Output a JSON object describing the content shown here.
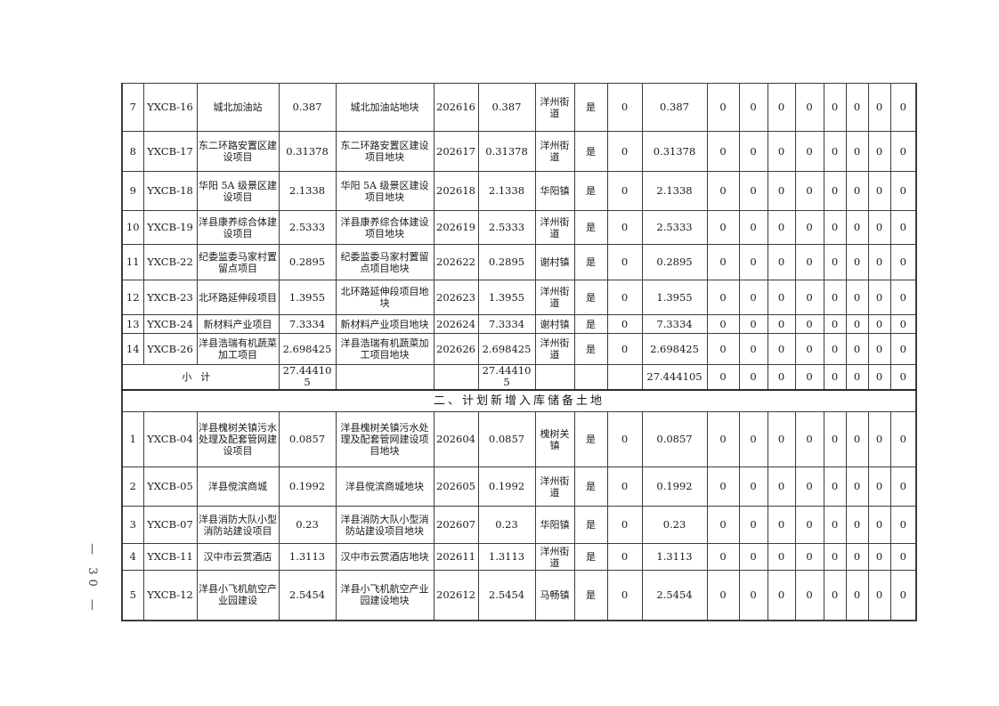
{
  "page": {
    "number_label": "— 30 —"
  },
  "table": {
    "section1_rows": [
      {
        "seq": "7",
        "code": "YXCB-16",
        "project": "城北加油站",
        "area1": "0.387",
        "parcel": "城北加油站地块",
        "parcel_code": "202616",
        "area2": "0.387",
        "town": "洋州街道",
        "flag": "是",
        "zero": "0",
        "area3": "0.387",
        "zeros": [
          "0",
          "0",
          "0",
          "0",
          "0",
          "0",
          "0",
          "0"
        ]
      },
      {
        "seq": "8",
        "code": "YXCB-17",
        "project": "东二环路安置区建设项目",
        "area1": "0.31378",
        "parcel": "东二环路安置区建设项目地块",
        "parcel_code": "202617",
        "area2": "0.31378",
        "town": "洋州街道",
        "flag": "是",
        "zero": "0",
        "area3": "0.31378",
        "zeros": [
          "0",
          "0",
          "0",
          "0",
          "0",
          "0",
          "0",
          "0"
        ]
      },
      {
        "seq": "9",
        "code": "YXCB-18",
        "project": "华阳 5A 级景区建设项目",
        "area1": "2.1338",
        "parcel": "华阳 5A 级景区建设项目地块",
        "parcel_code": "202618",
        "area2": "2.1338",
        "town": "华阳镇",
        "flag": "是",
        "zero": "0",
        "area3": "2.1338",
        "zeros": [
          "0",
          "0",
          "0",
          "0",
          "0",
          "0",
          "0",
          "0"
        ]
      },
      {
        "seq": "10",
        "code": "YXCB-19",
        "project": "洋县康养综合体建设项目",
        "area1": "2.5333",
        "parcel": "洋县康养综合体建设项目地块",
        "parcel_code": "202619",
        "area2": "2.5333",
        "town": "洋州街道",
        "flag": "是",
        "zero": "0",
        "area3": "2.5333",
        "zeros": [
          "0",
          "0",
          "0",
          "0",
          "0",
          "0",
          "0",
          "0"
        ]
      },
      {
        "seq": "11",
        "code": "YXCB-22",
        "project": "纪委监委马家村置留点项目",
        "area1": "0.2895",
        "parcel": "纪委监委马家村置留点项目地块",
        "parcel_code": "202622",
        "area2": "0.2895",
        "town": "谢村镇",
        "flag": "是",
        "zero": "0",
        "area3": "0.2895",
        "zeros": [
          "0",
          "0",
          "0",
          "0",
          "0",
          "0",
          "0",
          "0"
        ]
      },
      {
        "seq": "12",
        "code": "YXCB-23",
        "project": "北环路延伸段项目",
        "area1": "1.3955",
        "parcel": "北环路延伸段项目地块",
        "parcel_code": "202623",
        "area2": "1.3955",
        "town": "洋州街道",
        "flag": "是",
        "zero": "0",
        "area3": "1.3955",
        "zeros": [
          "0",
          "0",
          "0",
          "0",
          "0",
          "0",
          "0",
          "0"
        ]
      },
      {
        "seq": "13",
        "code": "YXCB-24",
        "project": "新材料产业项目",
        "area1": "7.3334",
        "parcel": "新材料产业项目地块",
        "parcel_code": "202624",
        "area2": "7.3334",
        "town": "谢村镇",
        "flag": "是",
        "zero": "0",
        "area3": "7.3334",
        "zeros": [
          "0",
          "0",
          "0",
          "0",
          "0",
          "0",
          "0",
          "0"
        ]
      },
      {
        "seq": "14",
        "code": "YXCB-26",
        "project": "洋县浩瑞有机蔬菜加工项目",
        "area1": "2.698425",
        "parcel": "洋县浩瑞有机蔬菜加工项目地块",
        "parcel_code": "202626",
        "area2": "2.698425",
        "town": "洋州街道",
        "flag": "是",
        "zero": "0",
        "area3": "2.698425",
        "zeros": [
          "0",
          "0",
          "0",
          "0",
          "0",
          "0",
          "0",
          "0"
        ]
      }
    ],
    "subtotal": {
      "label": "小计",
      "area1": "27.444105",
      "area2": "27.444105",
      "area3": "27.444105",
      "zeros": [
        "0",
        "0",
        "0",
        "0",
        "0",
        "0",
        "0",
        "0"
      ]
    },
    "section2_header": "二、计划新增入库储备土地",
    "section2_rows": [
      {
        "seq": "1",
        "code": "YXCB-04",
        "project": "洋县槐树关镇污水处理及配套管网建设项目",
        "area1": "0.0857",
        "parcel": "洋县槐树关镇污水处理及配套管网建设项目地块",
        "parcel_code": "202604",
        "area2": "0.0857",
        "town": "槐树关镇",
        "flag": "是",
        "zero": "0",
        "area3": "0.0857",
        "zeros": [
          "0",
          "0",
          "0",
          "0",
          "0",
          "0",
          "0",
          "0"
        ]
      },
      {
        "seq": "2",
        "code": "YXCB-05",
        "project": "洋县傥滨商城",
        "area1": "0.1992",
        "parcel": "洋县傥滨商城地块",
        "parcel_code": "202605",
        "area2": "0.1992",
        "town": "洋州街道",
        "flag": "是",
        "zero": "0",
        "area3": "0.1992",
        "zeros": [
          "0",
          "0",
          "0",
          "0",
          "0",
          "0",
          "0",
          "0"
        ]
      },
      {
        "seq": "3",
        "code": "YXCB-07",
        "project": "洋县消防大队小型消防站建设项目",
        "area1": "0.23",
        "parcel": "洋县消防大队小型消防站建设项目地块",
        "parcel_code": "202607",
        "area2": "0.23",
        "town": "华阳镇",
        "flag": "是",
        "zero": "0",
        "area3": "0.23",
        "zeros": [
          "0",
          "0",
          "0",
          "0",
          "0",
          "0",
          "0",
          "0"
        ]
      },
      {
        "seq": "4",
        "code": "YXCB-11",
        "project": "汉中市云赏酒店",
        "area1": "1.3113",
        "parcel": "汉中市云赏酒店地块",
        "parcel_code": "202611",
        "area2": "1.3113",
        "town": "洋州街道",
        "flag": "是",
        "zero": "0",
        "area3": "1.3113",
        "zeros": [
          "0",
          "0",
          "0",
          "0",
          "0",
          "0",
          "0",
          "0"
        ]
      },
      {
        "seq": "5",
        "code": "YXCB-12",
        "project": "洋县小飞机航空产业园建设",
        "area1": "2.5454",
        "parcel": "洋县小飞机航空产业园建设地块",
        "parcel_code": "202612",
        "area2": "2.5454",
        "town": "马畅镇",
        "flag": "是",
        "zero": "0",
        "area3": "2.5454",
        "zeros": [
          "0",
          "0",
          "0",
          "0",
          "0",
          "0",
          "0",
          "0"
        ]
      }
    ]
  }
}
